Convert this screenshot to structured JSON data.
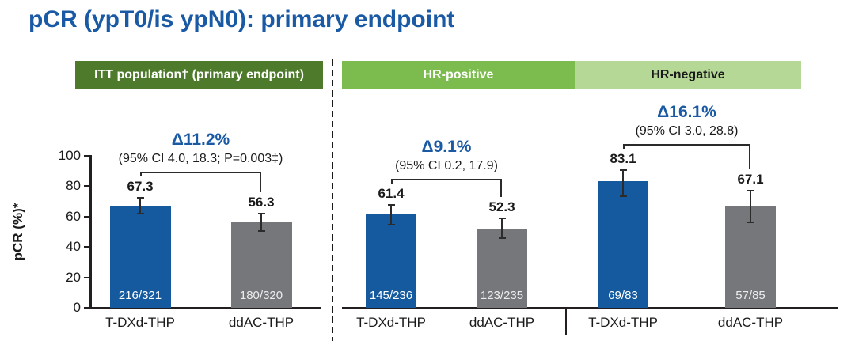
{
  "page": {
    "title": "pCR (ypT0/is ypN0): primary endpoint"
  },
  "colors": {
    "title_blue": "#1A5AA5",
    "delta_blue": "#1A5AA5",
    "bar_blue": "#155A9E",
    "bar_gray": "#76777B",
    "fraction_on_blue": "#FFFFFF",
    "fraction_on_gray": "#EDEDED",
    "header_itt_green": "#4E7B2B",
    "header_hrpos_green": "#7CBB4D",
    "header_hrneg_green": "#B5D896",
    "axis_black": "#231F20"
  },
  "chart_data": {
    "type": "bar",
    "title": "pCR (ypT0/is ypN0): primary endpoint",
    "xlabel": "",
    "ylabel": "pCR (%)*",
    "ylim": [
      0,
      100
    ],
    "yticks": [
      0,
      20,
      40,
      60,
      80,
      100
    ],
    "grid": false,
    "legend": "none",
    "error_bars": true,
    "groups": [
      {
        "header": "ITT population† (primary endpoint)",
        "delta": "Δ11.2%",
        "ci": "(95% CI 4.0, 18.3; P=0.003‡)",
        "bars": [
          {
            "label": "T-DXd-THP",
            "value": 67.3,
            "fraction": "216/321",
            "err_low": 61.9,
            "err_high": 72.4,
            "color": "blue"
          },
          {
            "label": "ddAC-THP",
            "value": 56.3,
            "fraction": "180/320",
            "err_low": 50.7,
            "err_high": 61.8,
            "color": "gray"
          }
        ]
      },
      {
        "header": "HR-positive",
        "delta": "Δ9.1%",
        "ci": "(95% CI 0.2, 17.9)",
        "bars": [
          {
            "label": "T-DXd-THP",
            "value": 61.4,
            "fraction": "145/236",
            "err_low": 54.8,
            "err_high": 67.6,
            "color": "blue"
          },
          {
            "label": "ddAC-THP",
            "value": 52.3,
            "fraction": "123/235",
            "err_low": 45.7,
            "err_high": 58.9,
            "color": "gray"
          }
        ]
      },
      {
        "header": "HR-negative",
        "delta": "Δ16.1%",
        "ci": "(95% CI 3.0, 28.8)",
        "bars": [
          {
            "label": "T-DXd-THP",
            "value": 83.1,
            "fraction": "69/83",
            "err_low": 73.3,
            "err_high": 90.5,
            "color": "blue"
          },
          {
            "label": "ddAC-THP",
            "value": 67.1,
            "fraction": "57/85",
            "err_low": 56.0,
            "err_high": 76.9,
            "color": "gray"
          }
        ]
      }
    ]
  }
}
